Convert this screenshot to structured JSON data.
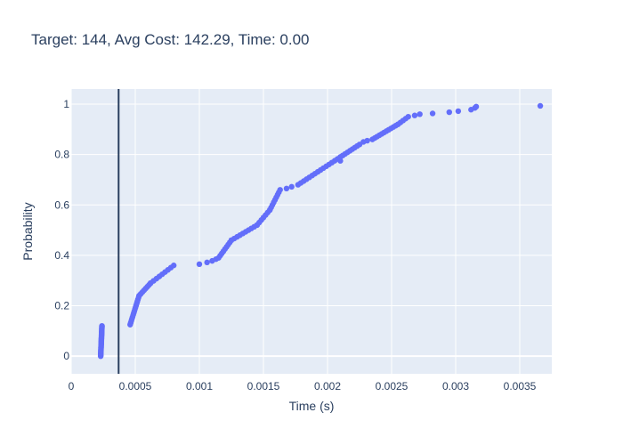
{
  "chart_data": {
    "type": "scatter",
    "title": "Target: 144, Avg Cost: 142.29, Time: 0.00",
    "xlabel": "Time (s)",
    "ylabel": "Probability",
    "xlim": [
      0,
      0.00375
    ],
    "ylim": [
      -0.07,
      1.06
    ],
    "x_ticks": [
      0,
      0.0005,
      0.001,
      0.0015,
      0.002,
      0.0025,
      0.003,
      0.0035
    ],
    "x_tick_labels": [
      "0",
      "0.0005",
      "0.001",
      "0.0015",
      "0.002",
      "0.0025",
      "0.003",
      "0.0035"
    ],
    "y_ticks": [
      0,
      0.2,
      0.4,
      0.6,
      0.8,
      1
    ],
    "y_tick_labels": [
      "0",
      "0.2",
      "0.4",
      "0.6",
      "0.8",
      "1"
    ],
    "grid": true,
    "background": "#e5ecf6",
    "marker_color": "#636efa",
    "vline": {
      "x": 0.00037,
      "color": "#2a3f5f"
    },
    "segments": [
      {
        "x0": 0.00023,
        "x1": 0.00024,
        "y0": 0.0,
        "y1": 0.12,
        "n": 40
      },
      {
        "x0": 0.00046,
        "x1": 0.00053,
        "y0": 0.125,
        "y1": 0.24,
        "n": 16
      },
      {
        "x0": 0.00053,
        "x1": 0.00062,
        "y0": 0.24,
        "y1": 0.29,
        "n": 8
      },
      {
        "x0": 0.00062,
        "x1": 0.0008,
        "y0": 0.29,
        "y1": 0.36,
        "n": 9
      },
      {
        "x0": 0.00115,
        "x1": 0.00125,
        "y0": 0.39,
        "y1": 0.46,
        "n": 9
      },
      {
        "x0": 0.00125,
        "x1": 0.00145,
        "y0": 0.46,
        "y1": 0.52,
        "n": 10
      },
      {
        "x0": 0.00145,
        "x1": 0.00155,
        "y0": 0.52,
        "y1": 0.58,
        "n": 7
      },
      {
        "x0": 0.00155,
        "x1": 0.00163,
        "y0": 0.58,
        "y1": 0.66,
        "n": 9
      },
      {
        "x0": 0.00177,
        "x1": 0.0021,
        "y0": 0.68,
        "y1": 0.79,
        "n": 16
      },
      {
        "x0": 0.0021,
        "x1": 0.00225,
        "y0": 0.79,
        "y1": 0.84,
        "n": 9
      },
      {
        "x0": 0.00235,
        "x1": 0.00255,
        "y0": 0.86,
        "y1": 0.92,
        "n": 12
      },
      {
        "x0": 0.00255,
        "x1": 0.00263,
        "y0": 0.92,
        "y1": 0.95,
        "n": 5
      }
    ],
    "points": [
      [
        0.001,
        0.365
      ],
      [
        0.00106,
        0.372
      ],
      [
        0.0011,
        0.378
      ],
      [
        0.00113,
        0.385
      ],
      [
        0.00168,
        0.665
      ],
      [
        0.00172,
        0.672
      ],
      [
        0.0021,
        0.775
      ],
      [
        0.00228,
        0.85
      ],
      [
        0.00231,
        0.855
      ],
      [
        0.00268,
        0.955
      ],
      [
        0.00272,
        0.96
      ],
      [
        0.00282,
        0.963
      ],
      [
        0.00295,
        0.968
      ],
      [
        0.00302,
        0.972
      ],
      [
        0.00312,
        0.978
      ],
      [
        0.00315,
        0.985
      ],
      [
        0.00316,
        0.99
      ],
      [
        0.00366,
        0.993
      ]
    ]
  }
}
